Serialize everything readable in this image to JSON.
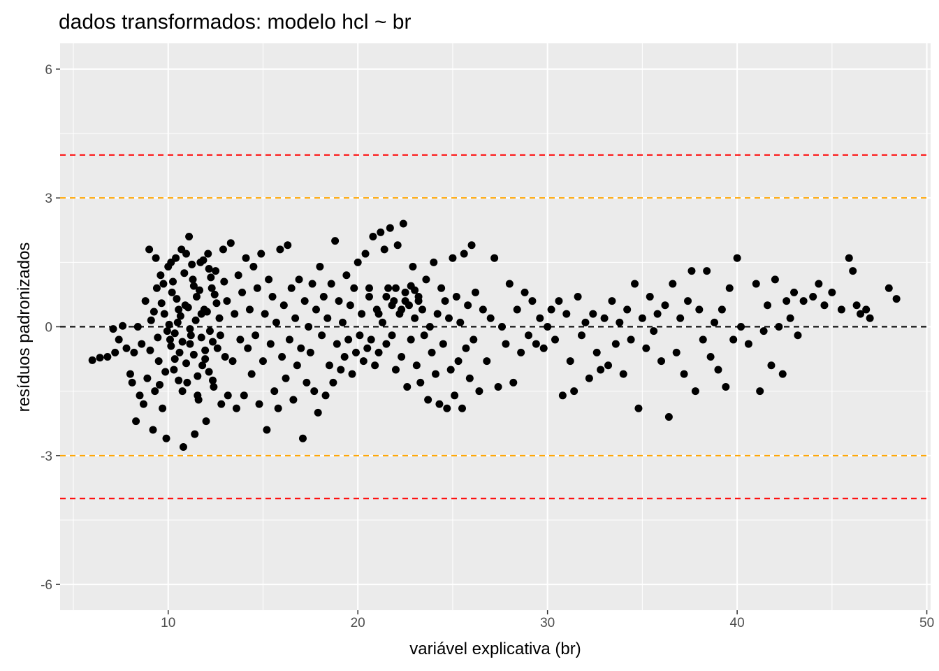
{
  "chart_data": {
    "type": "scatter",
    "title": "dados transformados: modelo hcl ~ br",
    "xlabel": "variável explicativa (br)",
    "ylabel": "resíduos padronizados",
    "xlim": [
      4.3,
      50.2
    ],
    "ylim": [
      -6.6,
      6.6
    ],
    "x_ticks": [
      10,
      20,
      30,
      40,
      50
    ],
    "y_ticks": [
      -6,
      -3,
      0,
      3,
      6
    ],
    "x_tick_labels": [
      "10",
      "20",
      "30",
      "40",
      "50"
    ],
    "y_tick_labels": [
      "-6",
      "-3",
      "0",
      "3",
      "6"
    ],
    "grid": true,
    "reference_lines": [
      {
        "y": 4,
        "color": "#ff0000",
        "style": "dashed"
      },
      {
        "y": 3,
        "color": "#ffa500",
        "style": "dashed"
      },
      {
        "y": 0,
        "color": "#000000",
        "style": "dashed"
      },
      {
        "y": -3,
        "color": "#ffa500",
        "style": "dashed"
      },
      {
        "y": -4,
        "color": "#ff0000",
        "style": "dashed"
      }
    ],
    "points": [
      [
        6.0,
        -0.78
      ],
      [
        6.4,
        -0.72
      ],
      [
        6.8,
        -0.7
      ],
      [
        7.1,
        -0.05
      ],
      [
        7.2,
        -0.6
      ],
      [
        7.4,
        -0.3
      ],
      [
        7.6,
        0.02
      ],
      [
        7.8,
        -0.5
      ],
      [
        8.0,
        -1.1
      ],
      [
        8.1,
        -1.3
      ],
      [
        8.2,
        -0.6
      ],
      [
        8.3,
        -2.2
      ],
      [
        8.4,
        0.0
      ],
      [
        8.5,
        -1.6
      ],
      [
        8.6,
        -0.4
      ],
      [
        8.7,
        -1.8
      ],
      [
        8.8,
        0.6
      ],
      [
        8.9,
        -1.2
      ],
      [
        9.0,
        1.8
      ],
      [
        9.1,
        0.15
      ],
      [
        9.2,
        -2.4
      ],
      [
        9.3,
        -1.5
      ],
      [
        9.4,
        0.9
      ],
      [
        9.5,
        -0.8
      ],
      [
        9.6,
        1.2
      ],
      [
        9.7,
        -1.9
      ],
      [
        9.8,
        0.3
      ],
      [
        9.9,
        -2.6
      ],
      [
        10.0,
        1.4
      ],
      [
        10.1,
        -0.3
      ],
      [
        10.2,
        0.8
      ],
      [
        10.3,
        -1.0
      ],
      [
        10.4,
        1.6
      ],
      [
        10.5,
        0.1
      ],
      [
        10.6,
        -0.6
      ],
      [
        10.7,
        1.8
      ],
      [
        10.8,
        -2.8
      ],
      [
        10.9,
        0.5
      ],
      [
        11.0,
        -1.3
      ],
      [
        11.1,
        2.1
      ],
      [
        11.2,
        -0.2
      ],
      [
        11.3,
        1.1
      ],
      [
        11.4,
        -2.5
      ],
      [
        11.5,
        0.7
      ],
      [
        11.6,
        -1.7
      ],
      [
        11.7,
        1.5
      ],
      [
        11.8,
        -0.9
      ],
      [
        11.9,
        0.4
      ],
      [
        12.0,
        -2.2
      ],
      [
        12.1,
        1.7
      ],
      [
        12.2,
        -0.1
      ],
      [
        12.3,
        0.9
      ],
      [
        12.4,
        -1.4
      ],
      [
        12.5,
        1.3
      ],
      [
        12.6,
        -0.5
      ],
      [
        12.7,
        0.2
      ],
      [
        12.8,
        -1.8
      ],
      [
        12.9,
        1.8
      ],
      [
        13.0,
        -0.7
      ],
      [
        13.1,
        0.6
      ],
      [
        9.05,
        -0.55
      ],
      [
        9.25,
        0.35
      ],
      [
        9.45,
        -0.25
      ],
      [
        9.65,
        0.55
      ],
      [
        9.85,
        -1.05
      ],
      [
        10.05,
        0.05
      ],
      [
        10.15,
        -0.45
      ],
      [
        10.25,
        1.05
      ],
      [
        10.35,
        -0.15
      ],
      [
        10.45,
        0.65
      ],
      [
        10.55,
        -1.25
      ],
      [
        10.65,
        0.25
      ],
      [
        10.75,
        -0.35
      ],
      [
        10.85,
        1.25
      ],
      [
        10.95,
        -0.85
      ],
      [
        11.05,
        0.45
      ],
      [
        11.15,
        -0.05
      ],
      [
        11.25,
        1.45
      ],
      [
        11.35,
        -0.65
      ],
      [
        11.45,
        0.15
      ],
      [
        11.55,
        -1.15
      ],
      [
        11.65,
        0.85
      ],
      [
        11.75,
        -0.25
      ],
      [
        11.85,
        1.55
      ],
      [
        11.95,
        -0.75
      ],
      [
        12.05,
        0.35
      ],
      [
        12.15,
        -1.05
      ],
      [
        12.25,
        1.15
      ],
      [
        12.35,
        -0.35
      ],
      [
        12.45,
        0.75
      ],
      [
        9.35,
        1.6
      ],
      [
        9.55,
        -1.35
      ],
      [
        9.75,
        1.0
      ],
      [
        9.95,
        -0.1
      ],
      [
        10.15,
        1.5
      ],
      [
        10.35,
        -0.75
      ],
      [
        10.55,
        0.4
      ],
      [
        10.75,
        -1.5
      ],
      [
        10.95,
        1.7
      ],
      [
        11.15,
        -0.4
      ],
      [
        11.35,
        0.95
      ],
      [
        11.55,
        -1.6
      ],
      [
        11.75,
        0.3
      ],
      [
        11.95,
        -0.55
      ],
      [
        12.15,
        1.35
      ],
      [
        12.35,
        -1.25
      ],
      [
        12.55,
        0.55
      ],
      [
        12.75,
        -0.2
      ],
      [
        12.95,
        1.05
      ],
      [
        13.15,
        -1.6
      ],
      [
        13.3,
        1.95
      ],
      [
        13.4,
        -0.8
      ],
      [
        13.5,
        0.3
      ],
      [
        13.6,
        -1.9
      ],
      [
        13.7,
        1.2
      ],
      [
        13.8,
        -0.3
      ],
      [
        13.9,
        0.8
      ],
      [
        14.0,
        -1.6
      ],
      [
        14.1,
        1.6
      ],
      [
        14.2,
        -0.5
      ],
      [
        14.3,
        0.4
      ],
      [
        14.4,
        -1.1
      ],
      [
        14.5,
        1.4
      ],
      [
        14.6,
        -0.2
      ],
      [
        14.7,
        0.9
      ],
      [
        14.8,
        -1.8
      ],
      [
        14.9,
        1.7
      ],
      [
        15.0,
        -0.8
      ],
      [
        15.1,
        0.3
      ],
      [
        15.2,
        -2.4
      ],
      [
        15.3,
        1.1
      ],
      [
        15.4,
        -0.4
      ],
      [
        15.5,
        0.7
      ],
      [
        15.6,
        -1.5
      ],
      [
        15.7,
        0.1
      ],
      [
        15.8,
        -1.9
      ],
      [
        15.9,
        1.8
      ],
      [
        16.0,
        -0.7
      ],
      [
        16.1,
        0.5
      ],
      [
        16.2,
        -1.2
      ],
      [
        16.3,
        1.9
      ],
      [
        16.4,
        -0.3
      ],
      [
        16.5,
        0.9
      ],
      [
        16.6,
        -1.7
      ],
      [
        16.7,
        0.2
      ],
      [
        16.8,
        -0.9
      ],
      [
        16.9,
        1.1
      ],
      [
        17.0,
        -0.5
      ],
      [
        17.1,
        -2.6
      ],
      [
        17.2,
        0.6
      ],
      [
        17.3,
        -1.3
      ],
      [
        17.4,
        0.0
      ],
      [
        17.5,
        -0.6
      ],
      [
        17.6,
        1.0
      ],
      [
        17.7,
        -1.5
      ],
      [
        17.8,
        0.4
      ],
      [
        17.9,
        -2.0
      ],
      [
        18.0,
        1.4
      ],
      [
        18.1,
        -0.2
      ],
      [
        18.2,
        0.7
      ],
      [
        18.3,
        -1.6
      ],
      [
        18.4,
        0.2
      ],
      [
        18.5,
        -0.9
      ],
      [
        18.6,
        1.0
      ],
      [
        18.7,
        -1.3
      ],
      [
        18.8,
        2.0
      ],
      [
        18.9,
        -0.4
      ],
      [
        19.0,
        0.6
      ],
      [
        19.1,
        -1.0
      ],
      [
        19.2,
        0.1
      ],
      [
        19.3,
        -0.7
      ],
      [
        19.4,
        1.2
      ],
      [
        19.5,
        -0.3
      ],
      [
        19.6,
        0.5
      ],
      [
        19.7,
        -1.1
      ],
      [
        19.8,
        0.9
      ],
      [
        19.9,
        -0.6
      ],
      [
        20.0,
        1.5
      ],
      [
        20.1,
        -0.2
      ],
      [
        20.2,
        0.3
      ],
      [
        20.3,
        -0.8
      ],
      [
        20.4,
        1.7
      ],
      [
        20.5,
        -0.5
      ],
      [
        20.6,
        0.7
      ],
      [
        20.7,
        -0.3
      ],
      [
        20.8,
        2.1
      ],
      [
        20.9,
        -0.9
      ],
      [
        21.0,
        0.4
      ],
      [
        21.1,
        -0.6
      ],
      [
        21.2,
        2.2
      ],
      [
        21.3,
        0.1
      ],
      [
        21.4,
        1.8
      ],
      [
        21.5,
        -0.4
      ],
      [
        21.6,
        0.9
      ],
      [
        21.7,
        2.3
      ],
      [
        21.8,
        -0.2
      ],
      [
        21.9,
        0.6
      ],
      [
        22.0,
        -1.0
      ],
      [
        22.1,
        1.9
      ],
      [
        22.2,
        0.3
      ],
      [
        22.3,
        -0.7
      ],
      [
        22.4,
        2.4
      ],
      [
        22.5,
        0.8
      ],
      [
        22.6,
        -1.4
      ],
      [
        22.7,
        0.5
      ],
      [
        22.8,
        -0.3
      ],
      [
        22.9,
        1.4
      ],
      [
        23.0,
        0.2
      ],
      [
        23.1,
        -0.9
      ],
      [
        23.2,
        0.7
      ],
      [
        23.3,
        -1.3
      ],
      [
        23.4,
        0.4
      ],
      [
        23.5,
        -0.2
      ],
      [
        23.6,
        1.1
      ],
      [
        23.7,
        -1.7
      ],
      [
        23.8,
        0.0
      ],
      [
        23.9,
        -0.6
      ],
      [
        24.0,
        1.5
      ],
      [
        24.1,
        -1.1
      ],
      [
        24.2,
        0.3
      ],
      [
        24.3,
        -1.8
      ],
      [
        24.4,
        0.9
      ],
      [
        24.5,
        -0.4
      ],
      [
        24.6,
        0.6
      ],
      [
        24.7,
        -1.9
      ],
      [
        24.8,
        0.2
      ],
      [
        24.9,
        -1.0
      ],
      [
        25.0,
        1.6
      ],
      [
        25.1,
        -1.6
      ],
      [
        25.2,
        0.7
      ],
      [
        25.3,
        -0.8
      ],
      [
        25.4,
        0.1
      ],
      [
        25.5,
        -1.9
      ],
      [
        25.6,
        1.7
      ],
      [
        25.7,
        -0.5
      ],
      [
        25.8,
        0.5
      ],
      [
        25.9,
        -1.2
      ],
      [
        26.0,
        1.9
      ],
      [
        26.1,
        -0.3
      ],
      [
        26.2,
        0.8
      ],
      [
        26.4,
        -1.5
      ],
      [
        26.6,
        0.4
      ],
      [
        26.8,
        -0.8
      ],
      [
        27.0,
        0.2
      ],
      [
        27.2,
        1.6
      ],
      [
        27.4,
        -1.4
      ],
      [
        27.6,
        0.0
      ],
      [
        27.8,
        -0.4
      ],
      [
        28.0,
        1.0
      ],
      [
        28.2,
        -1.3
      ],
      [
        28.4,
        0.4
      ],
      [
        28.6,
        -0.6
      ],
      [
        28.8,
        0.8
      ],
      [
        29.0,
        -0.2
      ],
      [
        29.2,
        0.6
      ],
      [
        29.4,
        -0.4
      ],
      [
        29.6,
        0.2
      ],
      [
        29.8,
        -0.5
      ],
      [
        30.0,
        0.0
      ],
      [
        30.2,
        0.4
      ],
      [
        30.4,
        -0.3
      ],
      [
        30.6,
        0.6
      ],
      [
        30.8,
        -1.6
      ],
      [
        31.0,
        0.3
      ],
      [
        31.2,
        -0.8
      ],
      [
        31.4,
        -1.5
      ],
      [
        31.6,
        0.7
      ],
      [
        31.8,
        -0.2
      ],
      [
        32.0,
        0.1
      ],
      [
        32.2,
        -1.2
      ],
      [
        32.4,
        0.3
      ],
      [
        32.6,
        -0.6
      ],
      [
        32.8,
        -1.0
      ],
      [
        33.0,
        0.2
      ],
      [
        33.2,
        -0.9
      ],
      [
        33.4,
        0.6
      ],
      [
        33.6,
        -0.4
      ],
      [
        33.8,
        0.1
      ],
      [
        34.0,
        -1.1
      ],
      [
        34.2,
        0.4
      ],
      [
        34.4,
        -0.3
      ],
      [
        34.6,
        1.0
      ],
      [
        34.8,
        -1.9
      ],
      [
        35.0,
        0.2
      ],
      [
        35.2,
        -0.5
      ],
      [
        35.4,
        0.7
      ],
      [
        35.6,
        -0.1
      ],
      [
        35.8,
        0.3
      ],
      [
        36.0,
        -0.8
      ],
      [
        36.2,
        0.5
      ],
      [
        36.4,
        -2.1
      ],
      [
        36.6,
        1.0
      ],
      [
        36.8,
        -0.6
      ],
      [
        37.0,
        0.2
      ],
      [
        37.2,
        -1.1
      ],
      [
        37.4,
        0.6
      ],
      [
        37.6,
        1.3
      ],
      [
        37.8,
        -1.5
      ],
      [
        38.0,
        0.4
      ],
      [
        38.2,
        -0.3
      ],
      [
        38.4,
        1.3
      ],
      [
        38.6,
        -0.7
      ],
      [
        38.8,
        0.1
      ],
      [
        39.0,
        -1.0
      ],
      [
        39.2,
        0.4
      ],
      [
        39.4,
        -1.4
      ],
      [
        39.6,
        0.9
      ],
      [
        39.8,
        -0.3
      ],
      [
        40.0,
        1.6
      ],
      [
        40.2,
        0.0
      ],
      [
        40.6,
        -0.4
      ],
      [
        41.0,
        1.0
      ],
      [
        41.2,
        -1.5
      ],
      [
        41.4,
        -0.1
      ],
      [
        41.6,
        0.5
      ],
      [
        41.8,
        -0.9
      ],
      [
        42.0,
        1.1
      ],
      [
        42.2,
        0.0
      ],
      [
        42.4,
        -1.1
      ],
      [
        42.6,
        0.6
      ],
      [
        42.8,
        0.2
      ],
      [
        43.0,
        0.8
      ],
      [
        43.2,
        -0.2
      ],
      [
        43.5,
        0.6
      ],
      [
        44.0,
        0.7
      ],
      [
        44.3,
        1.0
      ],
      [
        44.6,
        0.5
      ],
      [
        45.0,
        0.8
      ],
      [
        45.5,
        0.4
      ],
      [
        45.9,
        1.6
      ],
      [
        46.1,
        1.3
      ],
      [
        46.3,
        0.5
      ],
      [
        46.5,
        0.3
      ],
      [
        46.8,
        0.4
      ],
      [
        47.0,
        0.2
      ],
      [
        48.0,
        0.9
      ],
      [
        48.4,
        0.65
      ],
      [
        22.0,
        0.9
      ],
      [
        22.5,
        0.6
      ],
      [
        23.0,
        0.85
      ],
      [
        21.8,
        0.5
      ],
      [
        22.8,
        0.95
      ],
      [
        21.5,
        0.7
      ],
      [
        23.2,
        0.6
      ],
      [
        22.3,
        0.4
      ],
      [
        20.6,
        0.9
      ],
      [
        21.1,
        0.3
      ]
    ]
  }
}
